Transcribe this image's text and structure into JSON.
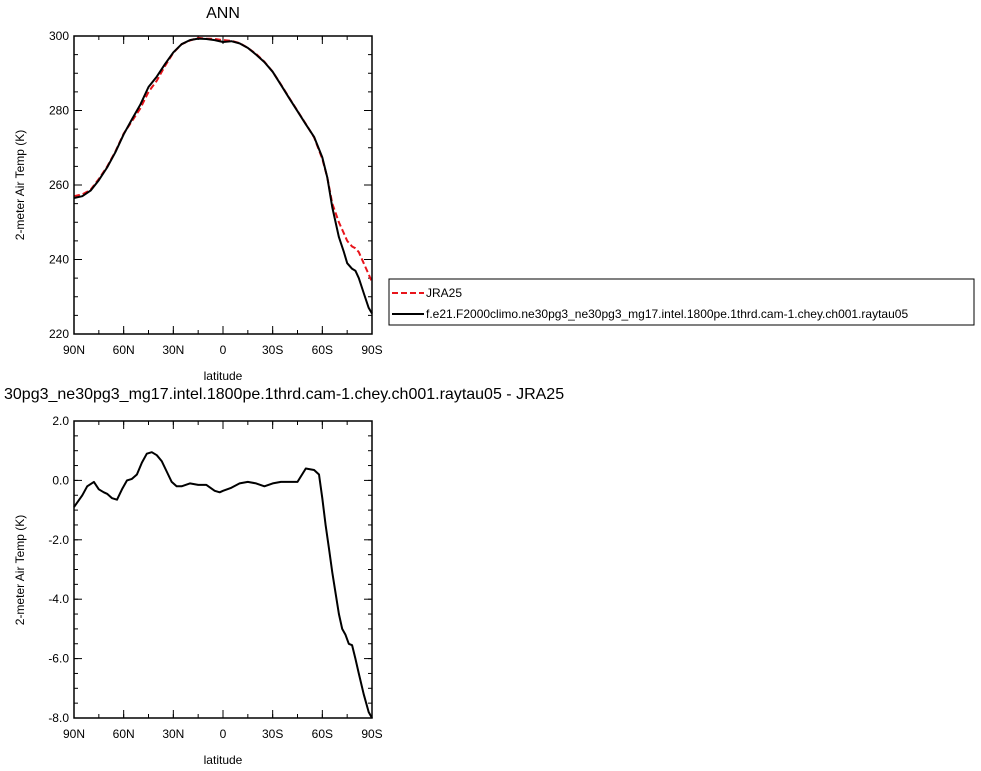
{
  "chart_data": [
    {
      "type": "line",
      "title": "ANN",
      "xlabel": "latitude",
      "ylabel": "2-meter Air Temp (K)",
      "xlim": [
        -90,
        90
      ],
      "ylim": [
        220,
        300
      ],
      "xticks": [
        -90,
        -60,
        -30,
        0,
        30,
        60,
        90
      ],
      "xtick_labels": [
        "90N",
        "60N",
        "30N",
        "0",
        "30S",
        "60S",
        "90S"
      ],
      "yticks": [
        220,
        240,
        260,
        280,
        300
      ],
      "ytick_labels": [
        "220",
        "240",
        "260",
        "280",
        "300"
      ],
      "legend_position": "right",
      "series": [
        {
          "name": "JRA25",
          "color": "#e8141b",
          "dash": true,
          "x": [
            -90,
            -85,
            -80,
            -75,
            -70,
            -65,
            -60,
            -55,
            -50,
            -45,
            -40,
            -35,
            -30,
            -25,
            -20,
            -15,
            -10,
            -5,
            0,
            5,
            10,
            15,
            20,
            25,
            30,
            35,
            40,
            45,
            50,
            55,
            60,
            63,
            66,
            70,
            73,
            75,
            78,
            80,
            82,
            85,
            88,
            90
          ],
          "y": [
            257.0,
            257.5,
            258.7,
            261.6,
            264.9,
            269.0,
            273.8,
            277.1,
            280.5,
            285.0,
            288.0,
            292.0,
            295.5,
            297.8,
            298.8,
            299.5,
            299.3,
            299.2,
            298.9,
            298.7,
            298.1,
            296.8,
            295.2,
            293.1,
            290.4,
            287.0,
            283.4,
            279.9,
            276.4,
            272.8,
            267.0,
            262.0,
            255.0,
            250.0,
            247.0,
            245.0,
            243.5,
            243.0,
            242.0,
            239.0,
            236.0,
            234.0
          ]
        },
        {
          "name": "f.e21.F2000climo.ne30pg3_ne30pg3_mg17.intel.1800pe.1thrd.cam-1.chey.ch001.raytau05",
          "color": "#000000",
          "dash": false,
          "x": [
            -90,
            -85,
            -80,
            -75,
            -70,
            -65,
            -60,
            -55,
            -50,
            -45,
            -40,
            -35,
            -30,
            -25,
            -20,
            -15,
            -10,
            -5,
            0,
            5,
            10,
            15,
            20,
            25,
            30,
            35,
            40,
            45,
            50,
            55,
            60,
            63,
            66,
            70,
            73,
            75,
            78,
            80,
            82,
            85,
            88,
            90
          ],
          "y": [
            256.5,
            257.0,
            258.5,
            261.3,
            264.7,
            268.8,
            273.6,
            277.6,
            281.5,
            286.3,
            289.1,
            292.5,
            295.6,
            297.8,
            298.9,
            299.3,
            299.2,
            298.9,
            298.4,
            298.6,
            298.0,
            296.8,
            295.0,
            293.0,
            290.4,
            286.9,
            283.3,
            279.8,
            276.3,
            272.9,
            267.4,
            262.0,
            254.0,
            246.0,
            242.0,
            239.0,
            237.5,
            237.0,
            235.0,
            231.0,
            227.0,
            225.5
          ]
        }
      ]
    },
    {
      "type": "line",
      "title": "30pg3_ne30pg3_mg17.intel.1800pe.1thrd.cam-1.chey.ch001.raytau05 - JRA25",
      "xlabel": "latitude",
      "ylabel": "2-meter Air Temp (K)",
      "xlim": [
        -90,
        90
      ],
      "ylim": [
        -8.0,
        2.0
      ],
      "xticks": [
        -90,
        -60,
        -30,
        0,
        30,
        60,
        90
      ],
      "xtick_labels": [
        "90N",
        "60N",
        "30N",
        "0",
        "30S",
        "60S",
        "90S"
      ],
      "yticks": [
        -8,
        -6,
        -4,
        -2,
        0,
        2
      ],
      "ytick_labels": [
        "-8.0",
        "-6.0",
        "-4.0",
        "-2.0",
        "0.0",
        "2.0"
      ],
      "series": [
        {
          "name": "",
          "color": "#000000",
          "dash": false,
          "x": [
            -90,
            -85,
            -82,
            -78,
            -75,
            -72,
            -70,
            -67,
            -64,
            -61,
            -58,
            -55,
            -52,
            -49,
            -46,
            -43,
            -40,
            -37,
            -34,
            -31,
            -28,
            -25,
            -20,
            -15,
            -10,
            -5,
            -2,
            0,
            5,
            10,
            15,
            20,
            25,
            30,
            35,
            40,
            45,
            50,
            55,
            58,
            60,
            62,
            64,
            66,
            68,
            70,
            72,
            74,
            76,
            78,
            80,
            82,
            85,
            88,
            90
          ],
          "y": [
            -0.9,
            -0.5,
            -0.2,
            -0.05,
            -0.3,
            -0.4,
            -0.45,
            -0.6,
            -0.65,
            -0.3,
            0.0,
            0.05,
            0.2,
            0.6,
            0.9,
            0.95,
            0.85,
            0.65,
            0.3,
            -0.05,
            -0.2,
            -0.2,
            -0.1,
            -0.15,
            -0.15,
            -0.35,
            -0.4,
            -0.35,
            -0.25,
            -0.1,
            -0.05,
            -0.1,
            -0.2,
            -0.1,
            -0.05,
            -0.05,
            -0.05,
            0.4,
            0.35,
            0.2,
            -0.6,
            -1.5,
            -2.3,
            -3.1,
            -3.8,
            -4.5,
            -5.0,
            -5.2,
            -5.5,
            -5.55,
            -6.0,
            -6.5,
            -7.2,
            -7.8,
            -8.0
          ]
        }
      ]
    }
  ]
}
